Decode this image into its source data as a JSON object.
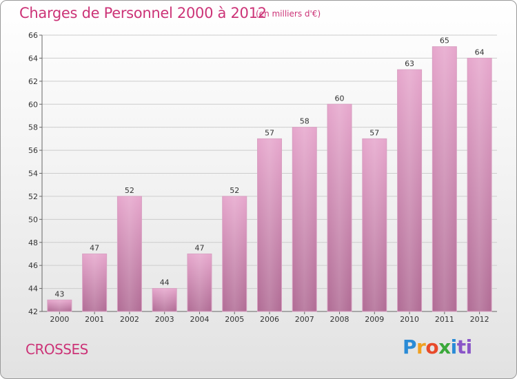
{
  "title": "Charges de Personnel 2000 à 2012",
  "subtitle": "(en milliers d'€)",
  "place": "CROSSES",
  "logo": {
    "text": "Proxiti",
    "letters": [
      "P",
      "r",
      "o",
      "x",
      "i",
      "ti"
    ]
  },
  "colors": {
    "accent": "#cc3377",
    "bar_top": "#e6a6cc",
    "bar_bottom": "#b06b94",
    "grid": "#cccccc"
  },
  "chart_data": {
    "type": "bar",
    "title": "Charges de Personnel 2000 à 2012",
    "subtitle": "(en milliers d'€)",
    "categories": [
      "2000",
      "2001",
      "2002",
      "2003",
      "2004",
      "2005",
      "2006",
      "2007",
      "2008",
      "2009",
      "2010",
      "2011",
      "2012"
    ],
    "values": [
      43,
      47,
      52,
      44,
      47,
      52,
      57,
      58,
      60,
      57,
      63,
      65,
      64
    ],
    "ylim": [
      42,
      66
    ],
    "yticks": [
      42,
      44,
      46,
      48,
      50,
      52,
      54,
      56,
      58,
      60,
      62,
      64,
      66
    ],
    "grid": true,
    "xlabel": "",
    "ylabel": ""
  }
}
